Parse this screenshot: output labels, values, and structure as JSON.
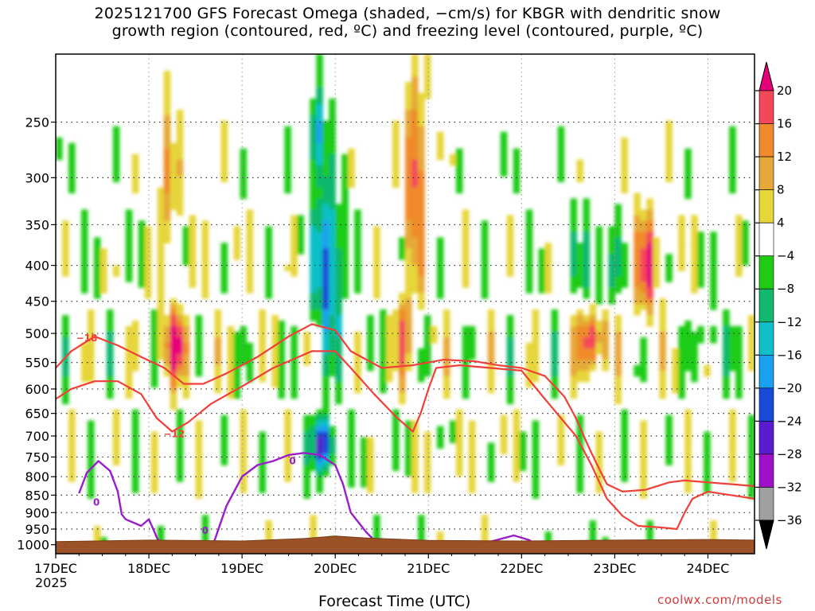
{
  "title_lines": [
    "2025121700 GFS Forecast Omega (shaded, −cm/s) for KBGR with dendritic snow",
    "growth region (contoured, red, ºC) and freezing level (contoured, purple, ºC)"
  ],
  "colors": {
    "dgz_contour": "#f0403a",
    "freezing_contour": "#9a1ec8",
    "terrain": "#9a5226",
    "grid": "#333333"
  },
  "chart_data": {
    "type": "heatmap",
    "title": "2025121700 GFS Forecast Omega (shaded, −cm/s) for KBGR with dendritic snow growth region (contoured, red, ºC) and freezing level (contoured, purple, ºC)",
    "xlabel": "Forecast Time (UTC)",
    "ylabel": "",
    "credit": "coolwx.com/models",
    "x_range_hours": [
      0,
      180
    ],
    "x_ticks": [
      {
        "h": 0,
        "label": "17DEC",
        "sub": "2025"
      },
      {
        "h": 24,
        "label": "18DEC",
        "sub": ""
      },
      {
        "h": 48,
        "label": "19DEC",
        "sub": ""
      },
      {
        "h": 72,
        "label": "20DEC",
        "sub": ""
      },
      {
        "h": 96,
        "label": "21DEC",
        "sub": ""
      },
      {
        "h": 120,
        "label": "22DEC",
        "sub": ""
      },
      {
        "h": 144,
        "label": "23DEC",
        "sub": ""
      },
      {
        "h": 168,
        "label": "24DEC",
        "sub": ""
      }
    ],
    "y_scale": "log-pressure",
    "y_range_hpa": [
      200,
      1030
    ],
    "y_ticks": [
      250,
      300,
      350,
      400,
      450,
      500,
      550,
      600,
      650,
      700,
      750,
      800,
      850,
      900,
      950,
      1000
    ],
    "colorbar": {
      "labels": [
        "20",
        "16",
        "12",
        "8",
        "4",
        "−4",
        "−8",
        "−12",
        "−16",
        "−20",
        "−24",
        "−28",
        "−32",
        "−36"
      ],
      "bins": [
        {
          "range": "> 20",
          "color": "#e6007a"
        },
        {
          "range": "16 to 20",
          "color": "#f4485a"
        },
        {
          "range": "12 to 16",
          "color": "#f08a2a"
        },
        {
          "range": "8 to 12",
          "color": "#e6a838"
        },
        {
          "range": "4 to 8",
          "color": "#e6d63a"
        },
        {
          "range": "-4 to 4",
          "color": "#ffffff"
        },
        {
          "range": "-8 to -4",
          "color": "#1ecc14"
        },
        {
          "range": "-12 to -8",
          "color": "#11b86e"
        },
        {
          "range": "-16 to -12",
          "color": "#10c0c8"
        },
        {
          "range": "-20 to -16",
          "color": "#1aa0f0"
        },
        {
          "range": "-24 to -20",
          "color": "#1a4ad8"
        },
        {
          "range": "-28 to -24",
          "color": "#5a1cd0"
        },
        {
          "range": "-32 to -28",
          "color": "#a010c8"
        },
        {
          "range": "-36 to -32",
          "color": "#a0a0a0"
        },
        {
          "range": "< -36",
          "color": "#000000"
        }
      ]
    },
    "omega_features": [
      {
        "name": "upward-18dec",
        "h": 30.5,
        "p": 520,
        "dh": 2.2,
        "dp_log": 0.08,
        "value": 22
      },
      {
        "name": "upward-18dec-col",
        "h": 29,
        "p": 300,
        "dh": 1.8,
        "dp_log": 0.16,
        "value": 11
      },
      {
        "name": "downward-20dec",
        "h": 70,
        "p": 400,
        "dh": 2.6,
        "dp_log": 0.18,
        "value": -22
      },
      {
        "name": "downward-20dec-upper",
        "h": 67.5,
        "p": 260,
        "dh": 1.6,
        "dp_log": 0.1,
        "value": -15
      },
      {
        "name": "downward-20dec-low",
        "h": 69,
        "p": 720,
        "dh": 2.0,
        "dp_log": 0.06,
        "value": -26
      },
      {
        "name": "upward-21dec",
        "h": 92.5,
        "p": 300,
        "dh": 1.6,
        "dp_log": 0.22,
        "value": 20
      },
      {
        "name": "upward-21dec-mid",
        "h": 89.5,
        "p": 500,
        "dh": 1.6,
        "dp_log": 0.1,
        "value": 13
      },
      {
        "name": "upward-22-23dec",
        "h": 138.5,
        "p": 510,
        "dh": 3.2,
        "dp_log": 0.07,
        "value": 20
      },
      {
        "name": "upward-23dec",
        "h": 152,
        "p": 400,
        "dh": 2.2,
        "dp_log": 0.12,
        "value": 19
      },
      {
        "name": "downward-22-23dec",
        "h": 140,
        "p": 400,
        "dh": 5,
        "dp_log": 0.12,
        "value": -8
      },
      {
        "name": "downward-24dec",
        "h": 170,
        "p": 520,
        "dh": 4,
        "dp_log": 0.07,
        "value": -6
      }
    ],
    "dgz_contours": [
      {
        "level": -18,
        "label": "−18",
        "label_h": 8,
        "label_p": 508,
        "points": [
          [
            0,
            560
          ],
          [
            4,
            530
          ],
          [
            10,
            505
          ],
          [
            16,
            520
          ],
          [
            22,
            540
          ],
          [
            28,
            560
          ],
          [
            33,
            590
          ],
          [
            38,
            590
          ],
          [
            44,
            570
          ],
          [
            52,
            540
          ],
          [
            60,
            505
          ],
          [
            66,
            485
          ],
          [
            72,
            495
          ],
          [
            76,
            530
          ],
          [
            84,
            560
          ],
          [
            92,
            555
          ],
          [
            100,
            545
          ],
          [
            108,
            548
          ],
          [
            114,
            555
          ],
          [
            120,
            560
          ],
          [
            126,
            575
          ],
          [
            131,
            615
          ],
          [
            134,
            660
          ],
          [
            136,
            700
          ],
          [
            138,
            740
          ],
          [
            140,
            780
          ],
          [
            142,
            820
          ],
          [
            146,
            840
          ],
          [
            152,
            835
          ],
          [
            158,
            815
          ],
          [
            162,
            810
          ],
          [
            168,
            815
          ],
          [
            174,
            820
          ],
          [
            180,
            825
          ]
        ]
      },
      {
        "level": -12,
        "label": "−12",
        "label_h": 30.5,
        "label_p": 695,
        "points": [
          [
            0,
            620
          ],
          [
            4,
            600
          ],
          [
            10,
            585
          ],
          [
            16,
            585
          ],
          [
            22,
            610
          ],
          [
            26,
            660
          ],
          [
            30,
            690
          ],
          [
            34,
            670
          ],
          [
            40,
            630
          ],
          [
            48,
            595
          ],
          [
            56,
            560
          ],
          [
            66,
            530
          ],
          [
            72,
            530
          ],
          [
            76,
            560
          ],
          [
            82,
            610
          ],
          [
            88,
            660
          ],
          [
            92,
            690
          ],
          [
            94,
            650
          ],
          [
            96,
            600
          ],
          [
            98,
            560
          ],
          [
            104,
            555
          ],
          [
            112,
            560
          ],
          [
            120,
            565
          ],
          [
            126,
            620
          ],
          [
            134,
            700
          ],
          [
            138,
            770
          ],
          [
            142,
            860
          ],
          [
            146,
            910
          ],
          [
            150,
            940
          ],
          [
            156,
            945
          ],
          [
            160,
            950
          ],
          [
            162,
            900
          ],
          [
            164,
            860
          ],
          [
            168,
            840
          ],
          [
            174,
            850
          ],
          [
            180,
            860
          ]
        ]
      }
    ],
    "freezing_contours": [
      {
        "level": 0,
        "label": "0",
        "label_h": 10.5,
        "label_p": 870,
        "points": [
          [
            6,
            845
          ],
          [
            8,
            790
          ],
          [
            11,
            760
          ],
          [
            14,
            785
          ],
          [
            16,
            840
          ],
          [
            17,
            905
          ],
          [
            18,
            920
          ],
          [
            22,
            940
          ],
          [
            24,
            920
          ],
          [
            26,
            975
          ],
          [
            28,
            1020
          ]
        ]
      },
      {
        "level": 0,
        "label": "0",
        "label_h": 38.5,
        "label_p": 955,
        "points": [
          [
            40,
            1020
          ],
          [
            44,
            880
          ],
          [
            48,
            800
          ],
          [
            52,
            770
          ],
          [
            56,
            760
          ],
          [
            60,
            745
          ],
          [
            64,
            740
          ],
          [
            68,
            745
          ],
          [
            72,
            770
          ],
          [
            74,
            820
          ],
          [
            76,
            900
          ],
          [
            80,
            960
          ],
          [
            84,
            1010
          ]
        ]
      },
      {
        "level": 0,
        "label": "0",
        "label_h": 61,
        "label_p": 760,
        "points": [
          [
            106,
            1015
          ],
          [
            112,
            990
          ],
          [
            118,
            970
          ],
          [
            122,
            985
          ],
          [
            125,
            1010
          ]
        ]
      }
    ],
    "terrain_surface_hpa": [
      [
        0,
        990
      ],
      [
        24,
        985
      ],
      [
        48,
        988
      ],
      [
        64,
        980
      ],
      [
        72,
        972
      ],
      [
        80,
        978
      ],
      [
        96,
        986
      ],
      [
        120,
        988
      ],
      [
        144,
        985
      ],
      [
        168,
        983
      ],
      [
        180,
        985
      ]
    ]
  }
}
